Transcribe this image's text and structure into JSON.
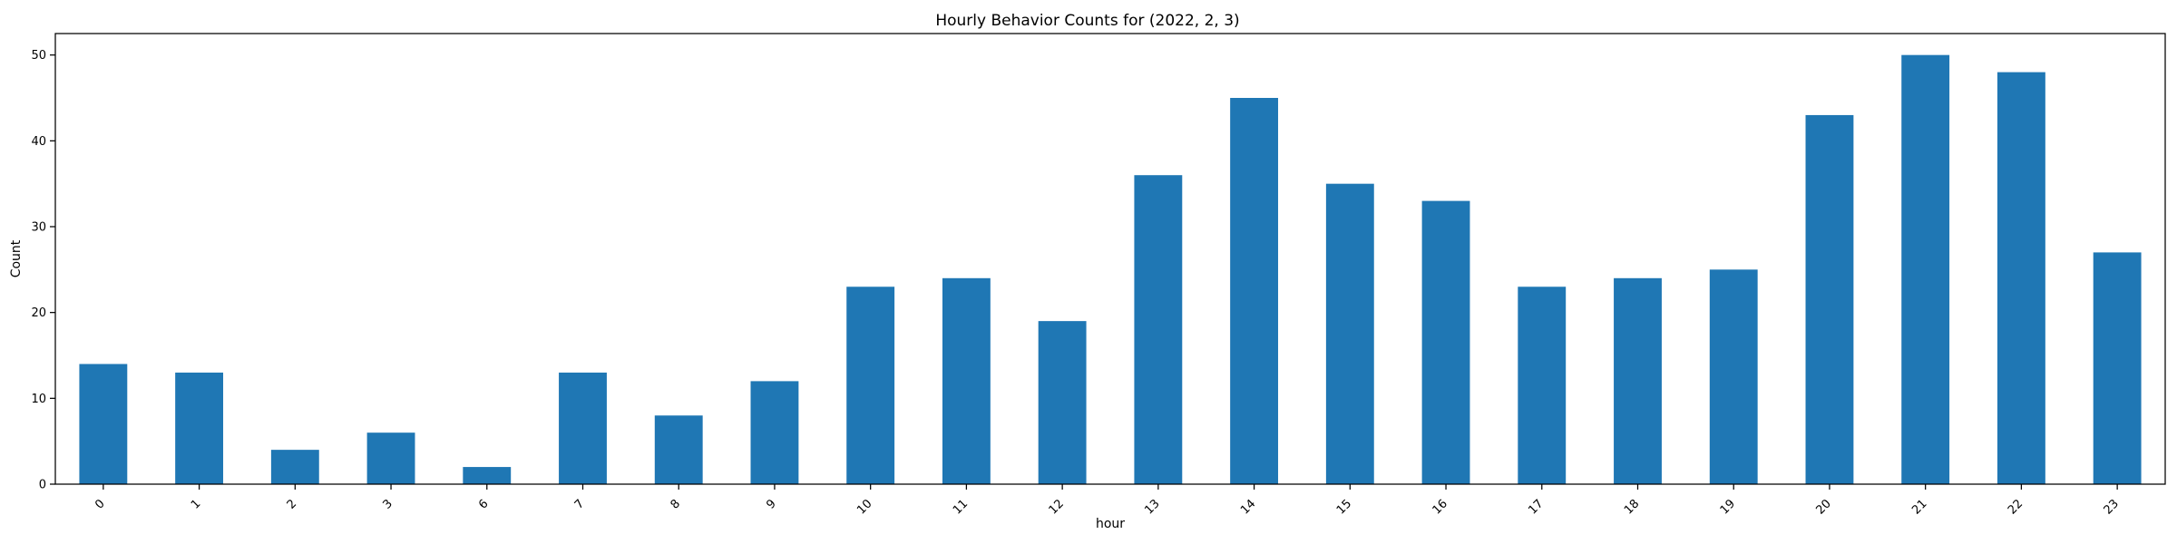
{
  "chart_data": {
    "type": "bar",
    "title": "Hourly Behavior Counts for (2022, 2, 3)",
    "xlabel": "hour",
    "ylabel": "Count",
    "categories": [
      "0",
      "1",
      "2",
      "3",
      "6",
      "7",
      "8",
      "9",
      "10",
      "11",
      "12",
      "13",
      "14",
      "15",
      "16",
      "17",
      "18",
      "19",
      "20",
      "21",
      "22",
      "23"
    ],
    "values": [
      14,
      13,
      4,
      6,
      2,
      13,
      8,
      12,
      23,
      24,
      19,
      36,
      45,
      35,
      33,
      23,
      24,
      25,
      43,
      50,
      48,
      27
    ],
    "ylim": [
      0,
      52.5
    ],
    "yticks": [
      0,
      10,
      20,
      30,
      40,
      50
    ],
    "bar_color": "#1f77b4",
    "grid": false,
    "legend": "none",
    "xtick_rotation_deg": 45
  }
}
